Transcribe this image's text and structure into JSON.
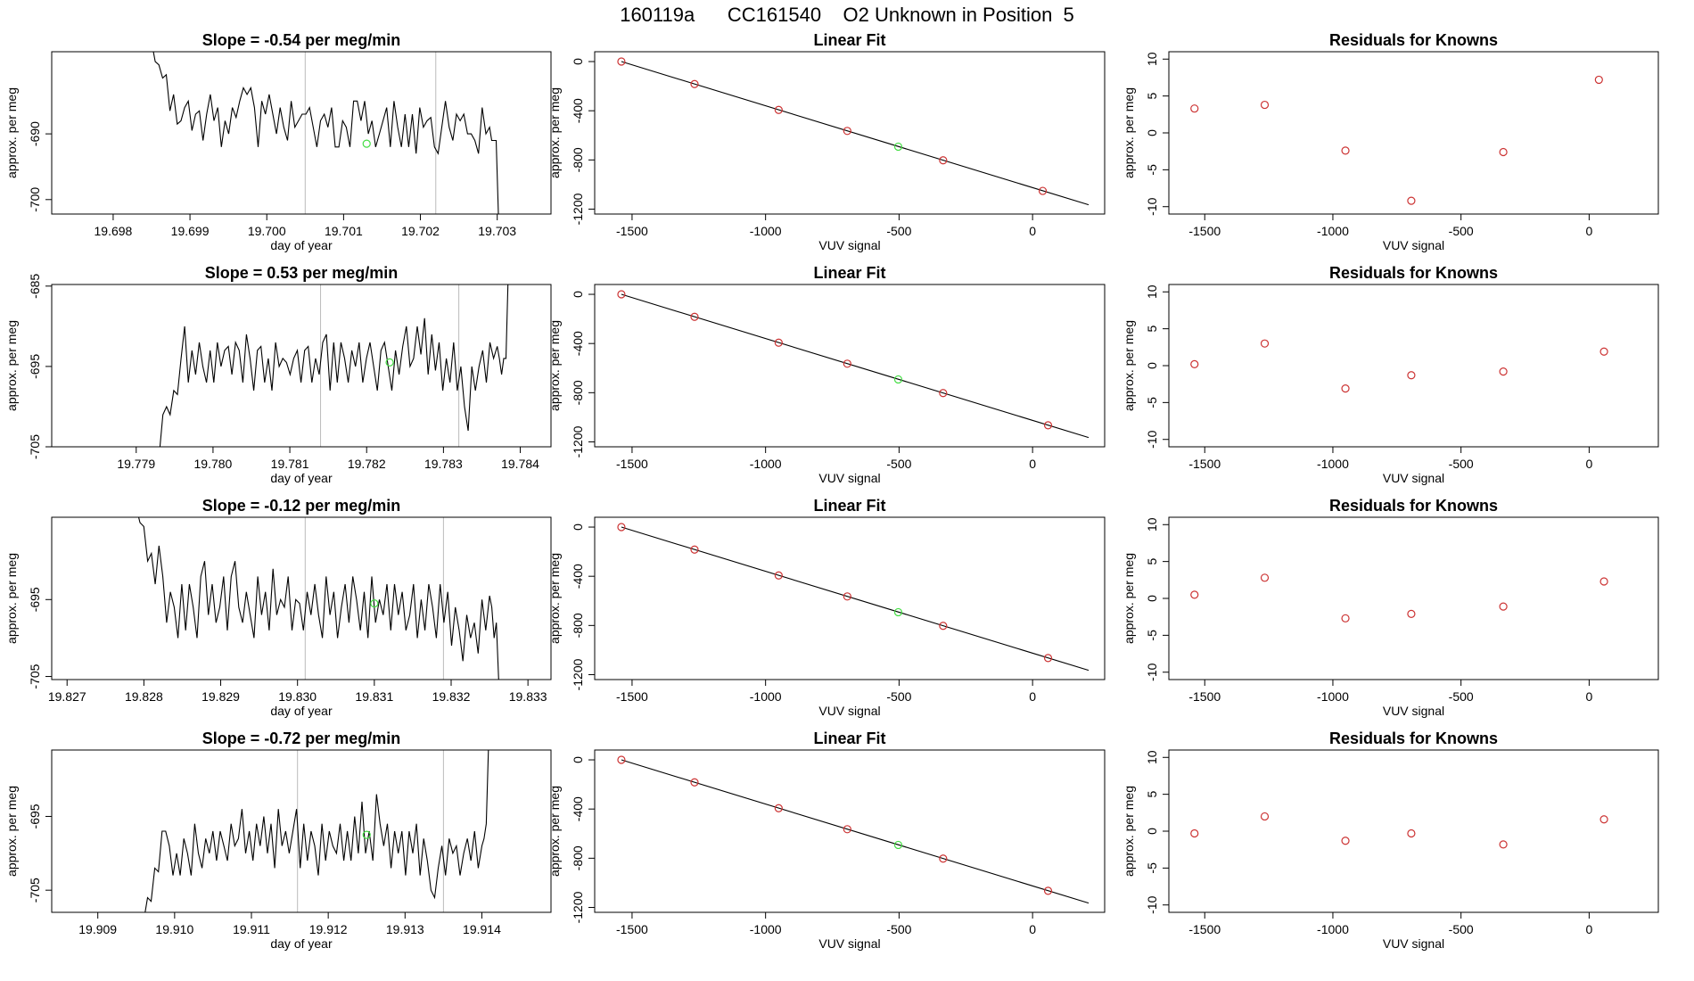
{
  "title": "160119a      CC161540    O2 Unknown in Position  5",
  "colors": {
    "line": "#000000",
    "known": "#cc3333",
    "unknown": "#44dd44",
    "vline": "#bbbbbb",
    "box": "#000000"
  },
  "chart_data": [
    {
      "type": "line",
      "row": 0,
      "col": 0,
      "title": "Slope =  -0.54  per meg/min",
      "xlabel": "day of year",
      "ylabel": "approx. per meg",
      "xlim": [
        19.6972,
        19.7037
      ],
      "ylim": [
        -702.2,
        -677.5
      ],
      "xticks": [
        19.698,
        19.699,
        19.7,
        19.701,
        19.702,
        19.703
      ],
      "xticklabels": [
        "19.698",
        "19.699",
        "19.700",
        "19.701",
        "19.702",
        "19.703"
      ],
      "yticks": [
        -690,
        -700
      ],
      "yticklabels": [
        "-690",
        "-700"
      ],
      "vlines": [
        19.7005,
        19.7022
      ],
      "trace_start": 19.6985,
      "trace_end": 19.7029,
      "trace_y": [
        -676,
        -679,
        -679.5,
        -681.5,
        -681,
        -686.5,
        -684,
        -688.5,
        -688,
        -686,
        -685,
        -689.5,
        -687,
        -686.5,
        -691,
        -687,
        -684,
        -688,
        -686,
        -692,
        -688,
        -690,
        -686,
        -687.5,
        -685,
        -683,
        -684,
        -683,
        -686,
        -692,
        -685,
        -687,
        -684,
        -687,
        -690,
        -686,
        -689,
        -691,
        -685,
        -689,
        -688,
        -687,
        -687,
        -686,
        -689,
        -692,
        -688,
        -687,
        -689,
        -686,
        -692,
        -692,
        -688,
        -689,
        -692,
        -685,
        -685,
        -688,
        -685,
        -690,
        -688,
        -692,
        -690,
        -688,
        -686,
        -692,
        -685,
        -689,
        -692,
        -687,
        -692,
        -687,
        -693,
        -686,
        -689,
        -688,
        -687.5,
        -692,
        -693,
        -689,
        -685,
        -689,
        -691,
        -687,
        -688,
        -687,
        -690,
        -690,
        -691,
        -693,
        -686,
        -690,
        -689
      ],
      "tail_y": [
        -691,
        -691,
        -691,
        -702.2
      ],
      "marker": {
        "x": 19.7013,
        "y": -691.5
      }
    },
    {
      "type": "scatter",
      "row": 0,
      "col": 1,
      "title": "Linear Fit",
      "xlabel": "VUV signal",
      "ylabel": "approx. per meg",
      "xlim": [
        -1640,
        270
      ],
      "ylim": [
        -1240,
        80
      ],
      "xticks": [
        -1500,
        -1000,
        -500,
        0
      ],
      "xticklabels": [
        "-1500",
        "-1000",
        "-500",
        "0"
      ],
      "yticks": [
        0,
        -400,
        -800,
        -1200
      ],
      "yticklabels": [
        "0",
        "-400",
        "-800",
        "-1200"
      ],
      "fit_line": [
        [
          -1540,
          0
        ],
        [
          210,
          -1165
        ]
      ],
      "knowns": [
        [
          -1540,
          0
        ],
        [
          -1266,
          -183
        ],
        [
          -951,
          -393
        ],
        [
          -694,
          -564
        ],
        [
          -335,
          -803
        ],
        [
          38,
          -1052
        ]
      ],
      "unknown": [
        [
          -503,
          -692
        ]
      ]
    },
    {
      "type": "scatter",
      "row": 0,
      "col": 2,
      "title": "Residuals for Knowns",
      "xlabel": "VUV signal",
      "ylabel": "approx. per meg",
      "xlim": [
        -1640,
        270
      ],
      "ylim": [
        -11,
        11
      ],
      "xticks": [
        -1500,
        -1000,
        -500,
        0
      ],
      "xticklabels": [
        "-1500",
        "-1000",
        "-500",
        "0"
      ],
      "yticks": [
        10,
        5,
        0,
        -5,
        -10
      ],
      "yticklabels": [
        "10",
        "5",
        "0",
        "-5",
        "-10"
      ],
      "knowns": [
        [
          -1540,
          3.3
        ],
        [
          -1266,
          3.8
        ],
        [
          -951,
          -2.4
        ],
        [
          -694,
          -9.2
        ],
        [
          -335,
          -2.6
        ],
        [
          38,
          7.2
        ]
      ]
    },
    {
      "type": "line",
      "row": 1,
      "col": 0,
      "title": "Slope =  0.53  per meg/min",
      "xlabel": "day of year",
      "ylabel": "approx. per meg",
      "xlim": [
        19.7779,
        19.7844
      ],
      "ylim": [
        -705,
        -684.8
      ],
      "xticks": [
        19.779,
        19.78,
        19.781,
        19.782,
        19.783,
        19.784
      ],
      "xticklabels": [
        "19.779",
        "19.780",
        "19.781",
        "19.782",
        "19.783",
        "19.784"
      ],
      "yticks": [
        -685,
        -695,
        -705
      ],
      "yticklabels": [
        "-685",
        "-695",
        "-705"
      ],
      "vlines": [
        19.7814,
        19.7832
      ],
      "trace_start": 19.7793,
      "trace_end": 19.7837,
      "trace_y": [
        -706,
        -701,
        -700,
        -701,
        -698,
        -698.5,
        -694,
        -690,
        -697,
        -693,
        -696,
        -692,
        -695,
        -697,
        -693,
        -697,
        -692,
        -695,
        -693,
        -692.5,
        -696,
        -692,
        -693,
        -697,
        -691,
        -694,
        -698,
        -693,
        -692.5,
        -697,
        -694,
        -698,
        -692,
        -695,
        -694,
        -694.5,
        -696,
        -694,
        -693,
        -697,
        -693,
        -692.5,
        -697,
        -694,
        -696,
        -692,
        -691,
        -698,
        -692,
        -697,
        -692,
        -694,
        -697,
        -693,
        -695,
        -692,
        -697,
        -694,
        -692,
        -695,
        -698,
        -693,
        -692,
        -695,
        -698,
        -693,
        -696,
        -692.5,
        -690,
        -695,
        -694,
        -690,
        -693.5,
        -689,
        -696,
        -691,
        -695.5,
        -692,
        -698,
        -694,
        -697,
        -692,
        -698,
        -695,
        -700,
        -703,
        -695,
        -698,
        -695,
        -693,
        -697,
        -692,
        -694,
        -692.5
      ],
      "tail_y": [
        -694,
        -696,
        -694,
        -694,
        -684
      ],
      "marker": {
        "x": 19.7823,
        "y": -694.5
      }
    },
    {
      "type": "scatter",
      "row": 1,
      "col": 1,
      "title": "Linear Fit",
      "xlabel": "VUV signal",
      "ylabel": "approx. per meg",
      "xlim": [
        -1640,
        270
      ],
      "ylim": [
        -1240,
        80
      ],
      "xticks": [
        -1500,
        -1000,
        -500,
        0
      ],
      "xticklabels": [
        "-1500",
        "-1000",
        "-500",
        "0"
      ],
      "yticks": [
        0,
        -400,
        -800,
        -1200
      ],
      "yticklabels": [
        "0",
        "-400",
        "-800",
        "-1200"
      ],
      "fit_line": [
        [
          -1540,
          0
        ],
        [
          210,
          -1165
        ]
      ],
      "knowns": [
        [
          -1540,
          0
        ],
        [
          -1266,
          -183
        ],
        [
          -951,
          -393
        ],
        [
          -694,
          -564
        ],
        [
          -335,
          -803
        ],
        [
          58,
          -1065
        ]
      ],
      "unknown": [
        [
          -503,
          -692
        ]
      ]
    },
    {
      "type": "scatter",
      "row": 1,
      "col": 2,
      "title": "Residuals for Knowns",
      "xlabel": "VUV signal",
      "ylabel": "approx. per meg",
      "xlim": [
        -1640,
        270
      ],
      "ylim": [
        -11,
        11
      ],
      "xticks": [
        -1500,
        -1000,
        -500,
        0
      ],
      "xticklabels": [
        "-1500",
        "-1000",
        "-500",
        "0"
      ],
      "yticks": [
        10,
        5,
        0,
        -5,
        -10
      ],
      "yticklabels": [
        "10",
        "5",
        "0",
        "-5",
        "-10"
      ],
      "knowns": [
        [
          -1540,
          0.2
        ],
        [
          -1266,
          3.0
        ],
        [
          -951,
          -3.1
        ],
        [
          -694,
          -1.3
        ],
        [
          -335,
          -0.8
        ],
        [
          58,
          1.9
        ]
      ]
    },
    {
      "type": "line",
      "row": 2,
      "col": 0,
      "title": "Slope =  -0.12  per meg/min",
      "xlabel": "day of year",
      "ylabel": "approx. per meg",
      "xlim": [
        19.8268,
        19.8333
      ],
      "ylim": [
        -705.4,
        -684.3
      ],
      "xticks": [
        19.827,
        19.828,
        19.829,
        19.83,
        19.831,
        19.832,
        19.833
      ],
      "xticklabels": [
        "19.827",
        "19.828",
        "19.829",
        "19.830",
        "19.831",
        "19.832",
        "19.833"
      ],
      "yticks": [
        -695,
        -705
      ],
      "yticklabels": [
        "-695",
        "-705"
      ],
      "vlines": [
        19.8301,
        19.8319
      ],
      "trace_start": 19.8279,
      "trace_end": 19.8325,
      "trace_y": [
        -683,
        -685,
        -685.5,
        -690,
        -689,
        -693,
        -688,
        -692,
        -698,
        -694,
        -696,
        -700,
        -693,
        -699,
        -693,
        -696,
        -700,
        -692,
        -690,
        -697,
        -693,
        -698,
        -696,
        -692,
        -699,
        -692,
        -690,
        -696,
        -698,
        -694,
        -697,
        -700,
        -692,
        -697,
        -694,
        -699,
        -691,
        -697,
        -695,
        -696,
        -692,
        -699,
        -695,
        -695.5,
        -699,
        -694,
        -697,
        -693,
        -697,
        -700,
        -692,
        -697,
        -694,
        -700,
        -696,
        -693,
        -698,
        -692,
        -695,
        -699,
        -694,
        -700,
        -692,
        -698,
        -695,
        -697,
        -693,
        -699,
        -693,
        -697,
        -694,
        -699,
        -697,
        -693,
        -700,
        -695,
        -699,
        -693,
        -696,
        -700,
        -693,
        -698,
        -694,
        -701,
        -696,
        -699,
        -703,
        -697,
        -700,
        -698,
        -702,
        -695,
        -699,
        -694.5
      ],
      "tail_y": [
        -696,
        -700,
        -698,
        -705.4
      ],
      "marker": {
        "x": 19.831,
        "y": -695.5
      }
    },
    {
      "type": "scatter",
      "row": 2,
      "col": 1,
      "title": "Linear Fit",
      "xlabel": "VUV signal",
      "ylabel": "approx. per meg",
      "xlim": [
        -1640,
        270
      ],
      "ylim": [
        -1240,
        80
      ],
      "xticks": [
        -1500,
        -1000,
        -500,
        0
      ],
      "xticklabels": [
        "-1500",
        "-1000",
        "-500",
        "0"
      ],
      "yticks": [
        0,
        -400,
        -800,
        -1200
      ],
      "yticklabels": [
        "0",
        "-400",
        "-800",
        "-1200"
      ],
      "fit_line": [
        [
          -1540,
          0
        ],
        [
          210,
          -1165
        ]
      ],
      "knowns": [
        [
          -1540,
          0
        ],
        [
          -1266,
          -183
        ],
        [
          -951,
          -393
        ],
        [
          -694,
          -564
        ],
        [
          -335,
          -803
        ],
        [
          58,
          -1065
        ]
      ],
      "unknown": [
        [
          -503,
          -692
        ]
      ]
    },
    {
      "type": "scatter",
      "row": 2,
      "col": 2,
      "title": "Residuals for Knowns",
      "xlabel": "VUV signal",
      "ylabel": "approx. per meg",
      "xlim": [
        -1640,
        270
      ],
      "ylim": [
        -11,
        11
      ],
      "xticks": [
        -1500,
        -1000,
        -500,
        0
      ],
      "xticklabels": [
        "-1500",
        "-1000",
        "-500",
        "0"
      ],
      "yticks": [
        10,
        5,
        0,
        -5,
        -10
      ],
      "yticklabels": [
        "10",
        "5",
        "0",
        "-5",
        "-10"
      ],
      "knowns": [
        [
          -1540,
          0.5
        ],
        [
          -1266,
          2.8
        ],
        [
          -951,
          -2.7
        ],
        [
          -694,
          -2.1
        ],
        [
          -335,
          -1.1
        ],
        [
          58,
          2.3
        ]
      ]
    },
    {
      "type": "line",
      "row": 3,
      "col": 0,
      "title": "Slope =  -0.72  per meg/min",
      "xlabel": "day of year",
      "ylabel": "approx. per meg",
      "xlim": [
        19.9084,
        19.9149
      ],
      "ylim": [
        -708,
        -686
      ],
      "xticks": [
        19.909,
        19.91,
        19.911,
        19.912,
        19.913,
        19.914
      ],
      "xticklabels": [
        "19.909",
        "19.910",
        "19.911",
        "19.912",
        "19.913",
        "19.914"
      ],
      "yticks": [
        -695,
        -705
      ],
      "yticklabels": [
        "-695",
        "-705"
      ],
      "vlines": [
        19.9116,
        19.9135
      ],
      "trace_start": 19.9096,
      "trace_end": 19.914,
      "trace_y": [
        -709,
        -706,
        -706.5,
        -702,
        -702.5,
        -697,
        -697,
        -699,
        -703,
        -700,
        -703,
        -698,
        -700,
        -703,
        -696,
        -700,
        -702,
        -698,
        -700,
        -697,
        -701,
        -697,
        -699,
        -701,
        -696,
        -699,
        -698,
        -694,
        -700,
        -697,
        -701,
        -696,
        -699,
        -695,
        -700,
        -696,
        -702,
        -694,
        -699,
        -697,
        -700,
        -697,
        -694,
        -702,
        -696,
        -701,
        -697,
        -699,
        -703,
        -696,
        -701,
        -697,
        -699,
        -700,
        -696,
        -701,
        -697,
        -701,
        -695,
        -700,
        -693,
        -700,
        -697,
        -701,
        -692,
        -696,
        -699,
        -696,
        -702,
        -697,
        -700,
        -697,
        -703,
        -697,
        -700,
        -696,
        -703,
        -698,
        -701,
        -705,
        -706,
        -702,
        -699,
        -703,
        -698,
        -700,
        -699,
        -703,
        -700,
        -698,
        -701,
        -697,
        -702,
        -699
      ],
      "tail_y": [
        -698,
        -696,
        -686
      ],
      "marker": {
        "x": 19.9125,
        "y": -697.5
      }
    },
    {
      "type": "scatter",
      "row": 3,
      "col": 1,
      "title": "Linear Fit",
      "xlabel": "VUV signal",
      "ylabel": "approx. per meg",
      "xlim": [
        -1640,
        270
      ],
      "ylim": [
        -1240,
        80
      ],
      "xticks": [
        -1500,
        -1000,
        -500,
        0
      ],
      "xticklabels": [
        "-1500",
        "-1000",
        "-500",
        "0"
      ],
      "yticks": [
        0,
        -400,
        -800,
        -1200
      ],
      "yticklabels": [
        "0",
        "-400",
        "-800",
        "-1200"
      ],
      "fit_line": [
        [
          -1540,
          0
        ],
        [
          210,
          -1165
        ]
      ],
      "knowns": [
        [
          -1540,
          0
        ],
        [
          -1266,
          -183
        ],
        [
          -951,
          -393
        ],
        [
          -694,
          -564
        ],
        [
          -335,
          -803
        ],
        [
          58,
          -1065
        ]
      ],
      "unknown": [
        [
          -503,
          -692
        ]
      ]
    },
    {
      "type": "scatter",
      "row": 3,
      "col": 2,
      "title": "Residuals for Knowns",
      "xlabel": "VUV signal",
      "ylabel": "approx. per meg",
      "xlim": [
        -1640,
        270
      ],
      "ylim": [
        -11,
        11
      ],
      "xticks": [
        -1500,
        -1000,
        -500,
        0
      ],
      "xticklabels": [
        "-1500",
        "-1000",
        "-500",
        "0"
      ],
      "yticks": [
        10,
        5,
        0,
        -5,
        -10
      ],
      "yticklabels": [
        "10",
        "5",
        "0",
        "-5",
        "-10"
      ],
      "knowns": [
        [
          -1540,
          -0.3
        ],
        [
          -1266,
          2.0
        ],
        [
          -951,
          -1.3
        ],
        [
          -694,
          -0.3
        ],
        [
          -335,
          -1.8
        ],
        [
          58,
          1.6
        ]
      ]
    }
  ]
}
